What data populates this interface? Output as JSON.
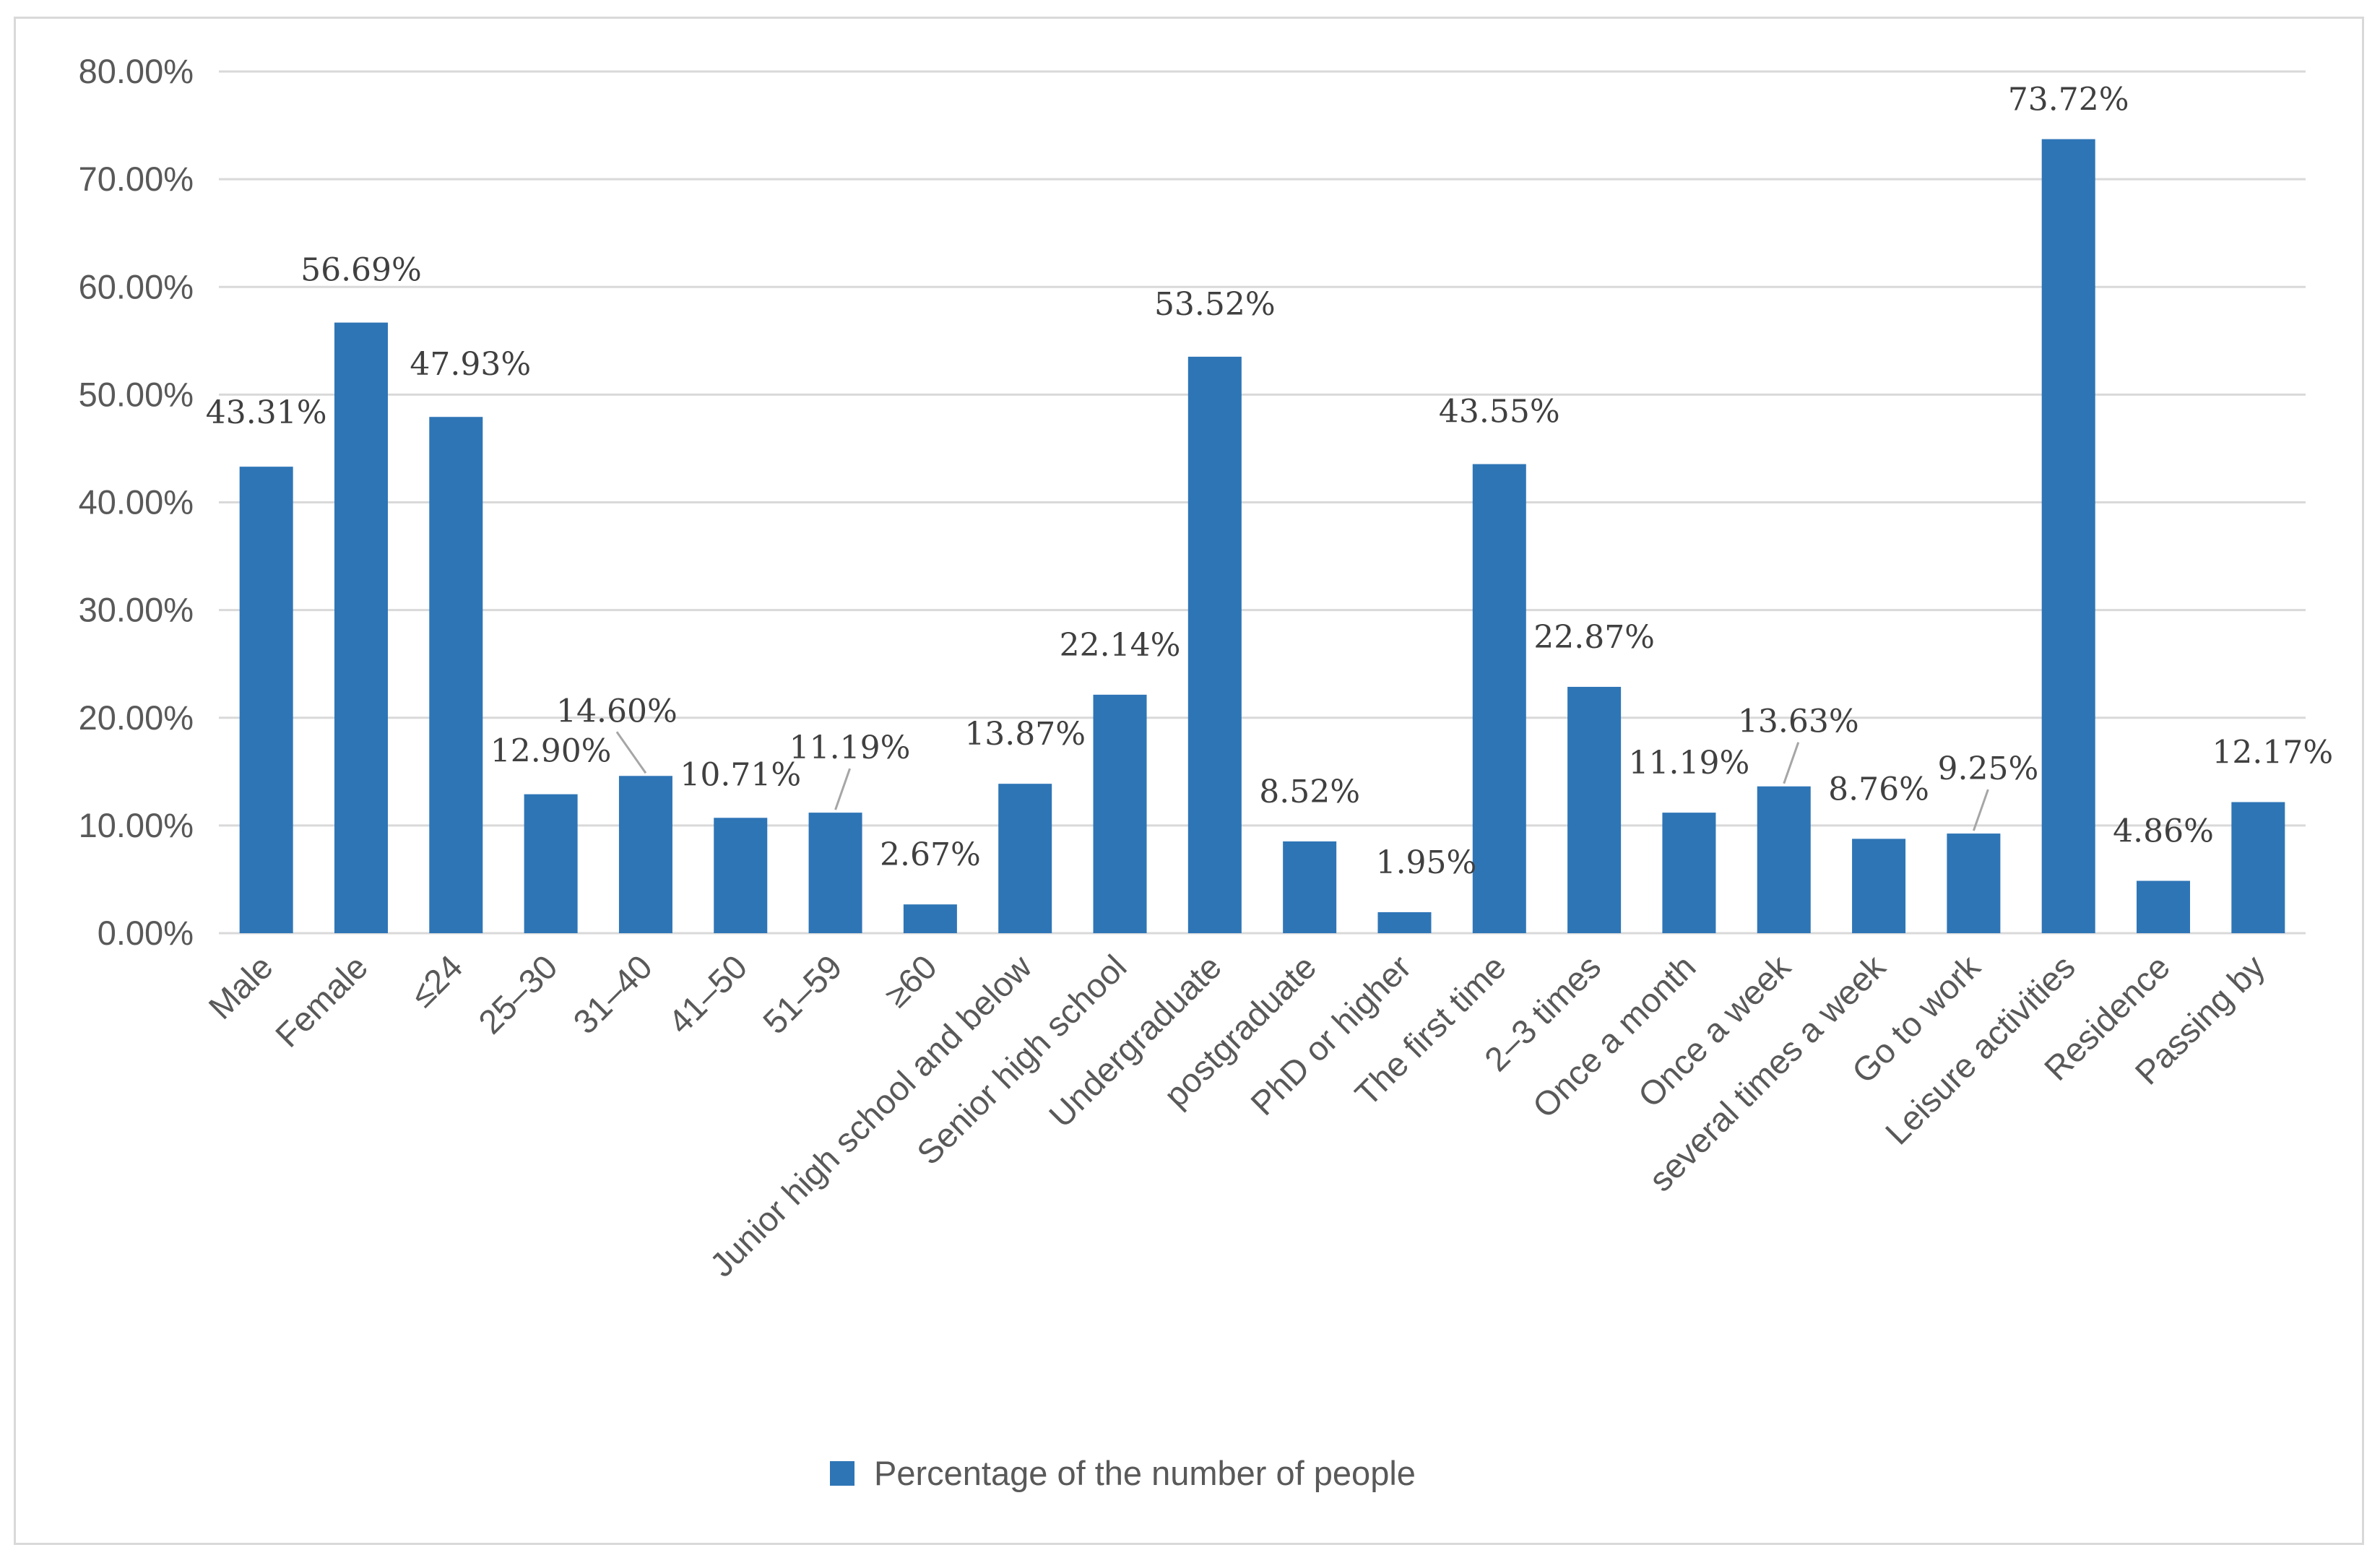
{
  "chart_data": {
    "type": "bar",
    "categories": [
      "Male",
      "Female",
      "≤24",
      "25–30",
      "31–40",
      "41–50",
      "51–59",
      "≥60",
      "Junior high school and below",
      "Senior high school",
      "Undergraduate",
      "postgraduate",
      "PhD or higher",
      "The first time",
      "2–3 times",
      "Once a month",
      "Once a week",
      "several times a week",
      "Go to work",
      "Leisure activities",
      "Residence",
      "Passing by"
    ],
    "series": [
      {
        "name": "Percentage of the number of people",
        "values": [
          43.31,
          56.69,
          47.93,
          12.9,
          14.6,
          10.71,
          11.19,
          2.67,
          13.87,
          22.14,
          53.52,
          8.52,
          1.95,
          43.55,
          22.87,
          11.19,
          13.63,
          8.76,
          9.25,
          73.72,
          4.86,
          12.17
        ],
        "labels": [
          "43.31%",
          "56.69%",
          "47.93%",
          "12.90%",
          "14.60%",
          "10.71%",
          "11.19%",
          "2.67%",
          "13.87%",
          "22.14%",
          "53.52%",
          "8.52%",
          "1.95%",
          "43.55%",
          "22.87%",
          "11.19%",
          "13.63%",
          "8.76%",
          "9.25%",
          "73.72%",
          "4.86%",
          "12.17%"
        ]
      }
    ],
    "y_ticks": [
      "0.00%",
      "10.00%",
      "20.00%",
      "30.00%",
      "40.00%",
      "50.00%",
      "60.00%",
      "70.00%",
      "80.00%"
    ],
    "ylim": [
      0,
      80
    ],
    "grid": true,
    "legend_position": "bottom",
    "bar_color": "#2e75b6",
    "title": "",
    "xlabel": "",
    "ylabel": ""
  }
}
